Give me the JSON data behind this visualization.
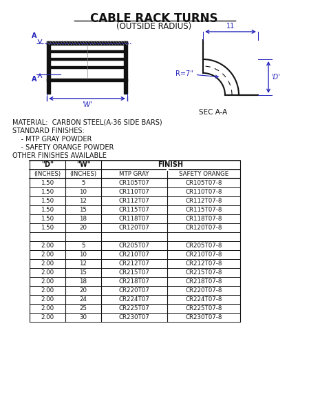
{
  "title": "CABLE RACK TURNS",
  "subtitle": "(OUTSIDE RADIUS)",
  "material_text": "MATERIAL:  CARBON STEEL(A-36 SIDE BARS)",
  "standard_finishes_title": "STANDARD FINISHES:",
  "finish_items": [
    "    - MTP GRAY POWDER",
    "    - SAFETY ORANGE POWDER"
  ],
  "other_finishes": "OTHER FINISHES AVAILABLE",
  "bg_color": "#f0f0f0",
  "rows": [
    [
      "1.50",
      "5",
      "CR105T07",
      "CR105T07-8"
    ],
    [
      "1.50",
      "10",
      "CR110T07",
      "CR110T07-8"
    ],
    [
      "1.50",
      "12",
      "CR112T07",
      "CR112T07-8"
    ],
    [
      "1.50",
      "15",
      "CR115T07",
      "CR115T07-8"
    ],
    [
      "1.50",
      "18",
      "CR118T07",
      "CR118T07-8"
    ],
    [
      "1.50",
      "20",
      "CR120T07",
      "CR120T07-8"
    ],
    [
      "",
      "",
      "",
      ""
    ],
    [
      "2.00",
      "5",
      "CR205T07",
      "CR205T07-8"
    ],
    [
      "2.00",
      "10",
      "CR210T07",
      "CR210T07-8"
    ],
    [
      "2.00",
      "12",
      "CR212T07",
      "CR212T07-8"
    ],
    [
      "2.00",
      "15",
      "CR215T07",
      "CR215T07-8"
    ],
    [
      "2.00",
      "18",
      "CR218T07",
      "CR218T07-8"
    ],
    [
      "2.00",
      "20",
      "CR220T07",
      "CR220T07-8"
    ],
    [
      "2.00",
      "24",
      "CR224T07",
      "CR224T07-8"
    ],
    [
      "2.00",
      "25",
      "CR225T07",
      "CR225T07-8"
    ],
    [
      "2.00",
      "30",
      "CR230T07",
      "CR230T07-8"
    ]
  ],
  "dim_color": "#2222bb",
  "line_color": "#111111",
  "text_color": "#111111",
  "white_color": "#ffffff"
}
